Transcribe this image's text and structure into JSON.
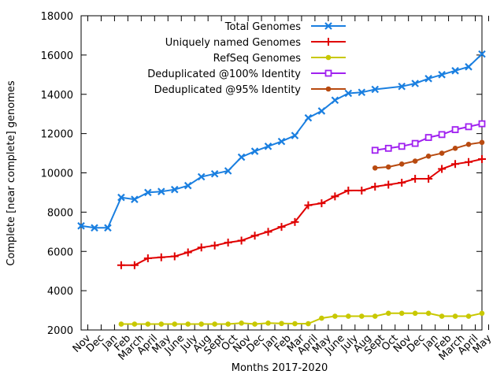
{
  "chart_data": {
    "type": "line",
    "title": "",
    "xlabel": "Months 2017-2020",
    "ylabel": "Complete [near complete] genomes",
    "ylim": [
      2000,
      18000
    ],
    "yticks": [
      2000,
      4000,
      6000,
      8000,
      10000,
      12000,
      14000,
      16000,
      18000
    ],
    "grid": false,
    "legend_position": "top-right",
    "categories": [
      "Nov",
      "Dec",
      "Jan",
      "Feb",
      "March",
      "April",
      "May",
      "June",
      "July",
      "Aug",
      "Sept",
      "Oct",
      "Nov",
      "Dec",
      "Jan",
      "Feb",
      "Mar",
      "April",
      "May",
      "June",
      "July",
      "Aug",
      "Sept",
      "Oct",
      "Nov",
      "Dec",
      "Jan",
      "Feb",
      "March",
      "April",
      "May"
    ],
    "x_points": [
      -0.5,
      0.5,
      1.5,
      2.5,
      3.5,
      4.5,
      5.5,
      6.5,
      7.5,
      8.5,
      9.5,
      10.5,
      11.5,
      12.5,
      13.5,
      14.5,
      15.5,
      16.5,
      17.5,
      18.5,
      19.5,
      20.5,
      21.5,
      22.5,
      23.5,
      24.5,
      25.5,
      26.5,
      27.5,
      28.5,
      29.5
    ],
    "x_range": [
      -0.5,
      29.5
    ],
    "series": [
      {
        "name": "Total Genomes",
        "color": "#1a7fe0",
        "marker": "x-cross",
        "values": [
          7300,
          7200,
          7200,
          8750,
          8650,
          9000,
          9050,
          9150,
          9350,
          9800,
          9950,
          10100,
          10800,
          11100,
          11350,
          11600,
          11900,
          12800,
          13150,
          13700,
          14050,
          14100,
          14250,
          null,
          14400,
          14550,
          14800,
          15000,
          15200,
          15400,
          16050
        ]
      },
      {
        "name": "Uniquely named Genomes",
        "color": "#e00000",
        "marker": "plus",
        "values": [
          null,
          null,
          null,
          5300,
          5300,
          5650,
          5700,
          5750,
          5950,
          6200,
          6300,
          6450,
          6550,
          6800,
          7000,
          7250,
          7500,
          8350,
          8450,
          8800,
          9100,
          9100,
          9300,
          9400,
          9500,
          9700,
          9700,
          10200,
          10450,
          10550,
          10700
        ]
      },
      {
        "name": "RefSeq Genomes",
        "color": "#c8c800",
        "marker": "dot",
        "values": [
          null,
          null,
          null,
          2300,
          2300,
          2300,
          2300,
          2300,
          2300,
          2300,
          2300,
          2300,
          2350,
          2300,
          2350,
          2330,
          2320,
          2320,
          2600,
          2700,
          2700,
          2700,
          2700,
          2850,
          2850,
          2850,
          2850,
          2700,
          2700,
          2700,
          2850
        ]
      },
      {
        "name": "Deduplicated @100% Identity",
        "color": "#a020f0",
        "marker": "open-square",
        "values": [
          null,
          null,
          null,
          null,
          null,
          null,
          null,
          null,
          null,
          null,
          null,
          null,
          null,
          null,
          null,
          null,
          null,
          null,
          null,
          null,
          null,
          null,
          11150,
          11250,
          11350,
          11500,
          11800,
          11950,
          12200,
          12350,
          12500
        ]
      },
      {
        "name": "Deduplicated @95% Identity",
        "color": "#b84a10",
        "marker": "dot",
        "values": [
          null,
          null,
          null,
          null,
          null,
          null,
          null,
          null,
          null,
          null,
          null,
          null,
          null,
          null,
          null,
          null,
          null,
          null,
          null,
          null,
          null,
          null,
          10250,
          10300,
          10450,
          10600,
          10850,
          11000,
          11250,
          11450,
          11550
        ]
      }
    ]
  }
}
